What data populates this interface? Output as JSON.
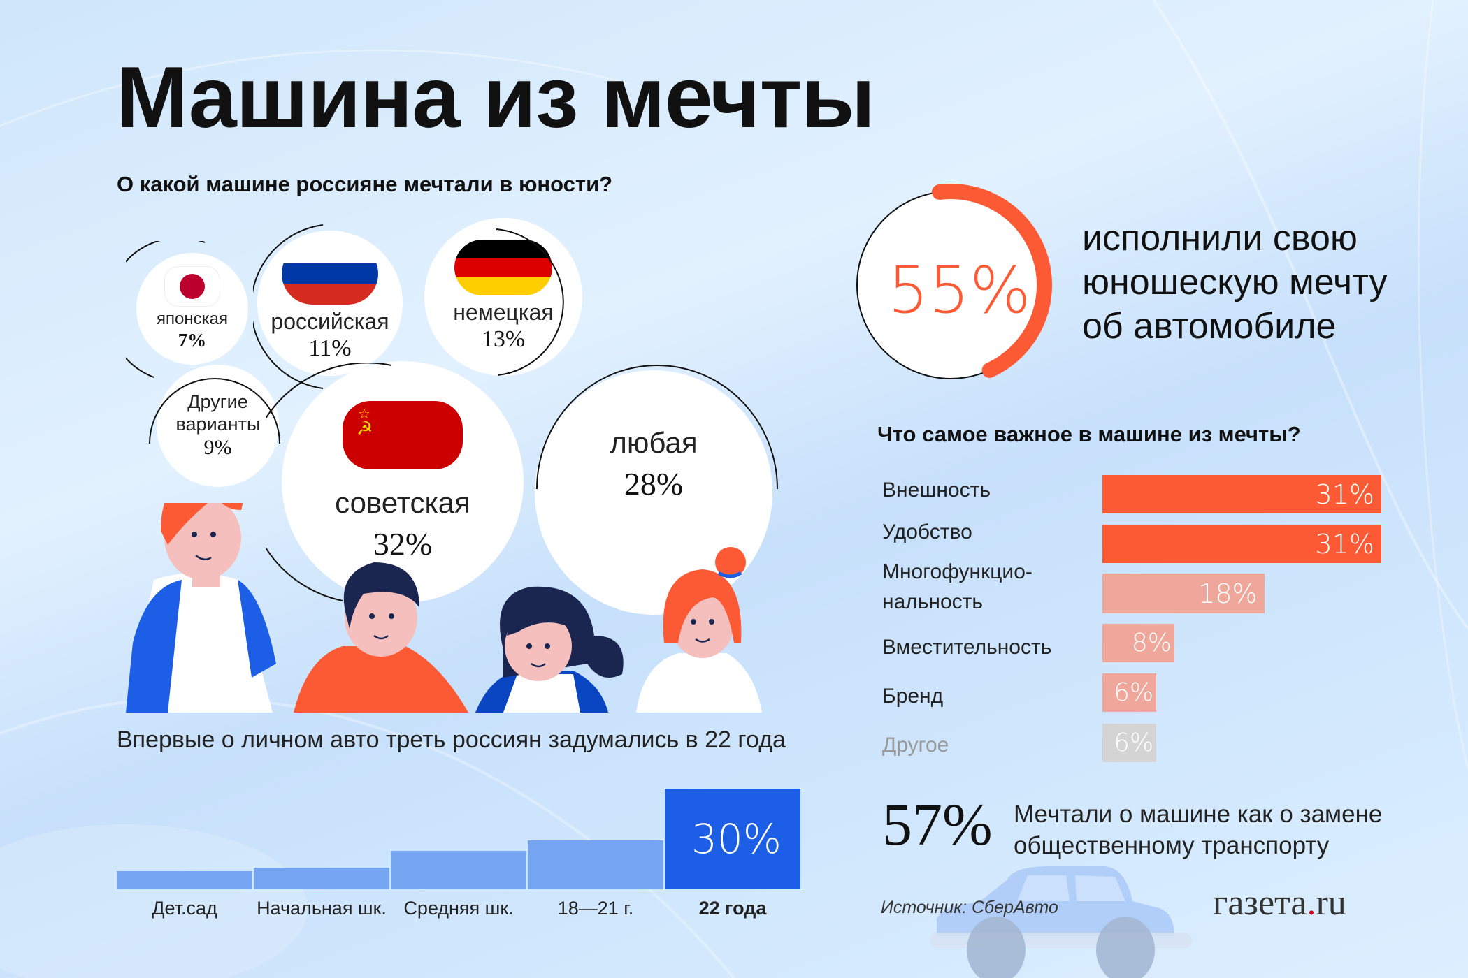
{
  "title": "Машина из мечты",
  "dream_car_section": {
    "question": "О какой машине россияне мечтали в юности?",
    "bubbles": [
      {
        "label": "японская",
        "value": "7%",
        "flag": "japan"
      },
      {
        "label": "российская",
        "value": "11%",
        "flag": "russia"
      },
      {
        "label": "немецкая",
        "value": "13%",
        "flag": "germany"
      },
      {
        "label": "Другие варианты",
        "value": "9%",
        "flag": ""
      },
      {
        "label": "советская",
        "value": "32%",
        "flag": "ussr"
      },
      {
        "label": "любая",
        "value": "28%",
        "flag": ""
      }
    ]
  },
  "age_section": {
    "headline": "Впервые о личном авто треть россиян задумались в 22 года",
    "highlight_value": "30%"
  },
  "fulfilled": {
    "percent_label": "55%",
    "percent": 55,
    "text": "исполнили свою юношескую мечту об автомобиле"
  },
  "importance_section": {
    "question": "Что самое важное в машине из мечты?"
  },
  "public_transport": {
    "value": "57%",
    "text": "Мечтали о машине как о замене общественному транспорту"
  },
  "source": "Источник: СберАвто",
  "logo": {
    "main": "газета",
    "dot": ".",
    "tld": "ru"
  },
  "colors": {
    "accent_orange": "#fc5a35",
    "light_orange": "#eea79a",
    "grey": "#d4d4d4",
    "bar_blue_light": "#75a4f1",
    "bar_blue_dark": "#1d5ee6"
  },
  "chart_data": [
    {
      "type": "bar",
      "title": "Впервые о личном авто треть россиян задумались в 22 года",
      "categories": [
        "Дет.сад",
        "Начальная шк.",
        "Средняя шк.",
        "18—21 г.",
        "22 года"
      ],
      "values": [
        5.5,
        6.5,
        11.5,
        14.5,
        30
      ],
      "value_labels": [
        "",
        "",
        "",
        "",
        "30%"
      ],
      "highlight_index": 4,
      "xlabel": "",
      "ylabel": "",
      "ylim": [
        0,
        30
      ]
    },
    {
      "type": "bar",
      "orientation": "horizontal",
      "title": "Что самое важное в машине из мечты?",
      "categories": [
        "Внешность",
        "Удобство",
        "Многофункцио-нальность",
        "Вместительность",
        "Бренд",
        "Другое"
      ],
      "values": [
        31,
        31,
        18,
        8,
        6,
        6
      ],
      "value_labels": [
        "31%",
        "31%",
        "18%",
        "8%",
        "6%",
        "6%"
      ],
      "bar_colors": [
        "#fc5a35",
        "#fc5a35",
        "#eea79a",
        "#eea79a",
        "#eea79a",
        "#d4d4d4"
      ],
      "xlim": [
        0,
        31
      ]
    },
    {
      "type": "pie",
      "title": "О какой машине россияне мечтали в юности?",
      "categories": [
        "японская",
        "российская",
        "немецкая",
        "Другие варианты",
        "советская",
        "любая"
      ],
      "values": [
        7,
        11,
        13,
        9,
        32,
        28
      ]
    }
  ]
}
